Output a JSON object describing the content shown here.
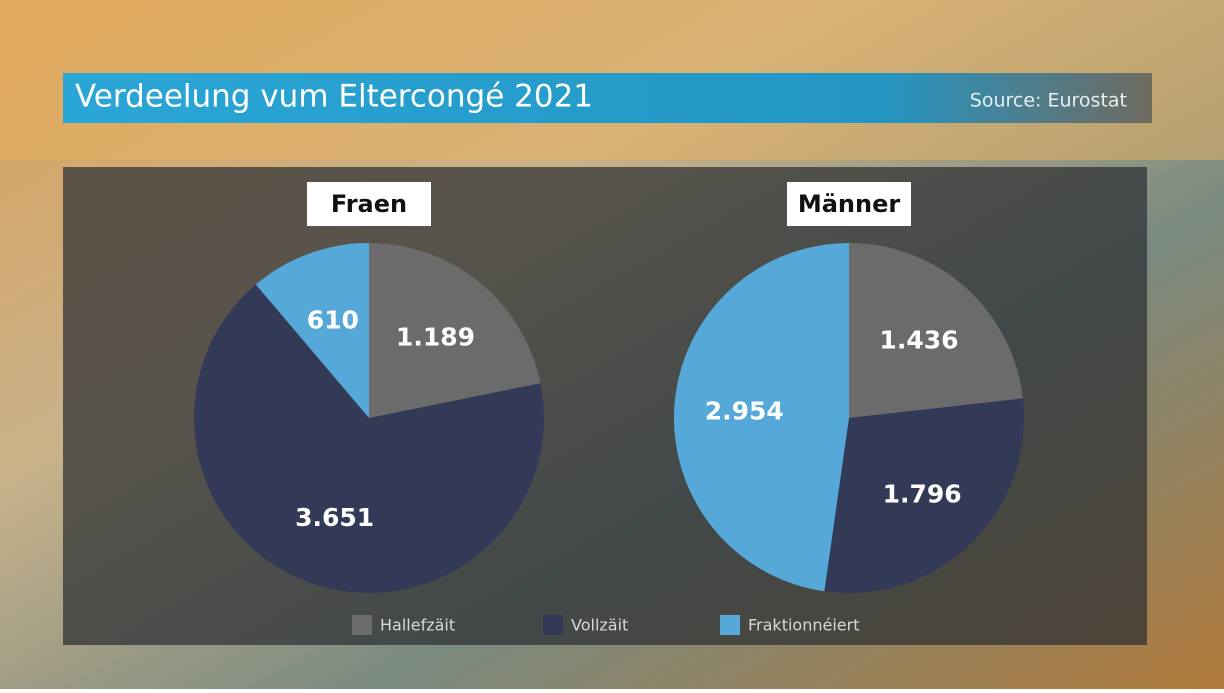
{
  "header": {
    "title": "Verdeelung vum Eltercongé 2021",
    "source": "Source: Eurostat"
  },
  "chart_data": [
    {
      "type": "pie",
      "title": "Fraen",
      "categories": [
        "Hallefzäit",
        "Vollzäit",
        "Fraktionnéiert"
      ],
      "values": [
        1189,
        3651,
        610
      ],
      "value_labels": [
        "1.189",
        "3.651",
        "610"
      ],
      "colors": [
        "#6b6b6b",
        "#323a58",
        "#55a8d8"
      ]
    },
    {
      "type": "pie",
      "title": "Männer",
      "categories": [
        "Hallefzäit",
        "Vollzäit",
        "Fraktionnéiert"
      ],
      "values": [
        1436,
        1796,
        2954
      ],
      "value_labels": [
        "1.436",
        "1.796",
        "2.954"
      ],
      "colors": [
        "#6b6b6b",
        "#323a58",
        "#55a8d8"
      ]
    }
  ]
}
